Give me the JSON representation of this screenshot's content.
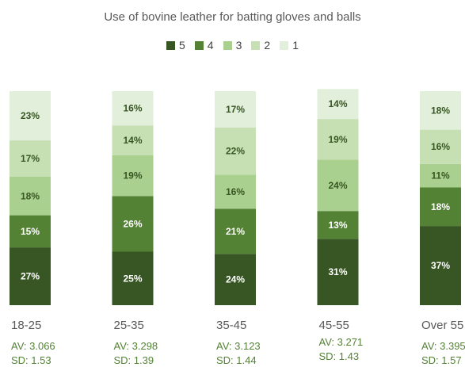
{
  "chart_data": {
    "type": "bar",
    "stacked": true,
    "title": "Use of bovine leather for batting gloves and balls",
    "legend": [
      "5",
      "4",
      "3",
      "2",
      "1"
    ],
    "legend_position": "top",
    "categories": [
      "18-25",
      "25-35",
      "35-45",
      "45-55",
      "Over 55"
    ],
    "series": [
      {
        "name": "5",
        "color": "#375623",
        "values": [
          27,
          25,
          24,
          31,
          37
        ],
        "labels": [
          "27%",
          "25%",
          "24%",
          "31%",
          "37%"
        ]
      },
      {
        "name": "4",
        "color": "#548235",
        "values": [
          15,
          26,
          21,
          13,
          18
        ],
        "labels": [
          "15%",
          "26%",
          "21%",
          "13%",
          "18%"
        ]
      },
      {
        "name": "3",
        "color": "#A9D08E",
        "values": [
          18,
          19,
          16,
          24,
          11
        ],
        "labels": [
          "18%",
          "19%",
          "16%",
          "24%",
          "11%"
        ]
      },
      {
        "name": "2",
        "color": "#C6E0B4",
        "values": [
          17,
          14,
          22,
          19,
          16
        ],
        "labels": [
          "17%",
          "14%",
          "22%",
          "19%",
          "16%"
        ]
      },
      {
        "name": "1",
        "color": "#E2EFDA",
        "values": [
          23,
          16,
          17,
          14,
          18
        ],
        "labels": [
          "23%",
          "16%",
          "17%",
          "14%",
          "18%"
        ]
      }
    ],
    "stats": [
      {
        "av": "AV: 3.066",
        "sd": "SD: 1.53"
      },
      {
        "av": "AV: 3.298",
        "sd": "SD: 1.39"
      },
      {
        "av": "AV: 3.123",
        "sd": "SD: 1.44"
      },
      {
        "av": "AV: 3.271",
        "sd": "SD: 1.43"
      },
      {
        "av": "AV: 3.395",
        "sd": "SD: 1.57"
      }
    ],
    "ylim": [
      0,
      100
    ],
    "grid": false
  }
}
